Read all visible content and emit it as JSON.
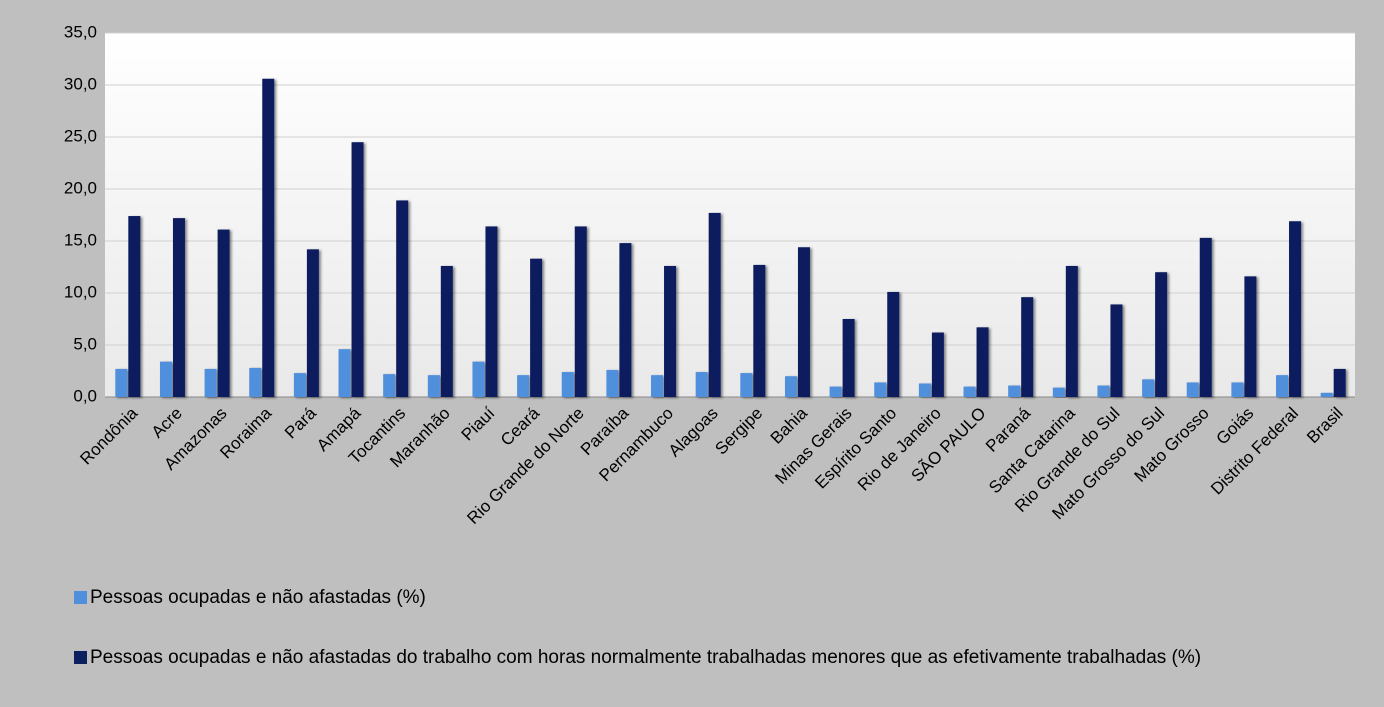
{
  "chart_data": {
    "type": "bar",
    "categories": [
      "Rondônia",
      "Acre",
      "Amazonas",
      "Roraima",
      "Pará",
      "Amapá",
      "Tocantins",
      "Maranhão",
      "Piauí",
      "Ceará",
      "Rio Grande do Norte",
      "Paraíba",
      "Pernambuco",
      "Alagoas",
      "Sergipe",
      "Bahia",
      "Minas Gerais",
      "Espírito Santo",
      "Rio de Janeiro",
      "SÃO PAULO",
      "Paraná",
      "Santa Catarina",
      "Rio Grande do Sul",
      "Mato Grosso do Sul",
      "Mato Grosso",
      "Goiás",
      "Distrito Federal",
      "Brasil"
    ],
    "series": [
      {
        "name": "Pessoas ocupadas e não afastadas (%)",
        "color": "#4f8fdb",
        "values": [
          2.7,
          3.4,
          2.7,
          2.8,
          2.3,
          4.6,
          2.2,
          2.1,
          3.4,
          2.1,
          2.4,
          2.6,
          2.1,
          2.4,
          2.3,
          2.0,
          1.0,
          1.4,
          1.3,
          1.0,
          1.1,
          0.9,
          1.1,
          1.7,
          1.4,
          1.4,
          2.1,
          0.4
        ]
      },
      {
        "name": "Pessoas ocupadas e não afastadas do trabalho com horas normalmente trabalhadas menores que as efetivamente trabalhadas (%)",
        "color": "#0c1f5e",
        "values": [
          17.4,
          17.2,
          16.1,
          30.6,
          14.2,
          24.5,
          18.9,
          12.6,
          16.4,
          13.3,
          16.4,
          14.8,
          12.6,
          17.7,
          12.7,
          14.4,
          7.5,
          10.1,
          6.2,
          6.7,
          9.6,
          12.6,
          8.9,
          12.0,
          15.3,
          11.6,
          16.9,
          2.7
        ]
      }
    ],
    "ylim": [
      0,
      35
    ],
    "yticks": [
      {
        "value": 0,
        "label": "0,0"
      },
      {
        "value": 5,
        "label": "5,0"
      },
      {
        "value": 10,
        "label": "10,0"
      },
      {
        "value": 15,
        "label": "15,0"
      },
      {
        "value": 20,
        "label": "20,0"
      },
      {
        "value": 25,
        "label": "25,0"
      },
      {
        "value": 30,
        "label": "30,0"
      },
      {
        "value": 35,
        "label": "35,0"
      }
    ],
    "grid": true
  }
}
